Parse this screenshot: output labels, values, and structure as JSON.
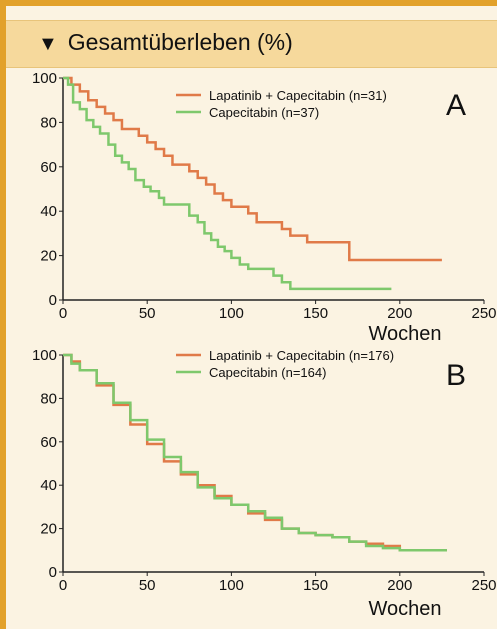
{
  "header": {
    "title": "Gesamtüberleben (%)",
    "icon": "collapse-triangle-icon"
  },
  "colors": {
    "orange": "#e07a48",
    "green": "#7ec86c",
    "header_bg": "#f6d99c",
    "panel_bg": "#fbf3e2",
    "border": "#e2a12a"
  },
  "chart_data": [
    {
      "type": "line",
      "panel_label": "A",
      "xlabel": "Wochen",
      "ylabel": "",
      "xlim": [
        0,
        250
      ],
      "ylim": [
        0,
        100
      ],
      "xticks": [
        "0",
        "50",
        "100",
        "150",
        "200",
        "250"
      ],
      "yticks": [
        "0",
        "20",
        "40",
        "60",
        "80",
        "100"
      ],
      "legend_position": "top-right",
      "series": [
        {
          "name": "Lapatinib + Capecitabin (n=31)",
          "color": "#e07a48",
          "x": [
            0,
            5,
            10,
            15,
            20,
            25,
            30,
            35,
            45,
            50,
            55,
            60,
            65,
            75,
            80,
            85,
            90,
            95,
            100,
            105,
            110,
            115,
            130,
            135,
            140,
            145,
            155,
            160,
            170,
            175,
            180,
            225
          ],
          "y": [
            100,
            97,
            94,
            90,
            87,
            84,
            81,
            77,
            74,
            71,
            68,
            65,
            61,
            58,
            55,
            52,
            48,
            45,
            42,
            42,
            39,
            35,
            32,
            29,
            29,
            26,
            26,
            26,
            18,
            18,
            18,
            18
          ]
        },
        {
          "name": "Capecitabin (n=37)",
          "color": "#7ec86c",
          "x": [
            0,
            3,
            6,
            10,
            14,
            18,
            22,
            27,
            31,
            35,
            39,
            43,
            48,
            52,
            57,
            60,
            63,
            75,
            80,
            84,
            88,
            92,
            96,
            100,
            105,
            110,
            120,
            125,
            130,
            135,
            145,
            150,
            195
          ],
          "y": [
            100,
            97,
            89,
            86,
            81,
            78,
            75,
            70,
            65,
            62,
            59,
            54,
            51,
            49,
            46,
            43,
            43,
            38,
            35,
            30,
            27,
            24,
            22,
            19,
            16,
            14,
            14,
            11,
            8,
            5,
            5,
            5,
            5
          ]
        }
      ]
    },
    {
      "type": "line",
      "panel_label": "B",
      "xlabel": "Wochen",
      "ylabel": "",
      "xlim": [
        0,
        250
      ],
      "ylim": [
        0,
        100
      ],
      "xticks": [
        "0",
        "50",
        "100",
        "150",
        "200",
        "250"
      ],
      "yticks": [
        "0",
        "20",
        "40",
        "60",
        "80",
        "100"
      ],
      "legend_position": "top-right",
      "series": [
        {
          "name": "Lapatinib + Capecitabin (n=176)",
          "color": "#e07a48",
          "x": [
            0,
            5,
            10,
            20,
            30,
            40,
            50,
            60,
            70,
            80,
            90,
            100,
            110,
            120,
            130,
            140,
            150,
            160,
            170,
            180,
            190,
            200,
            210,
            228
          ],
          "y": [
            100,
            97,
            93,
            86,
            77,
            68,
            59,
            51,
            45,
            40,
            35,
            31,
            27,
            24,
            20,
            18,
            17,
            16,
            14,
            13,
            12,
            10,
            10,
            10
          ]
        },
        {
          "name": "Capecitabin (n=164)",
          "color": "#7ec86c",
          "x": [
            0,
            5,
            10,
            20,
            30,
            40,
            50,
            60,
            70,
            80,
            90,
            100,
            110,
            120,
            130,
            140,
            150,
            160,
            170,
            180,
            190,
            200,
            210,
            228
          ],
          "y": [
            100,
            96,
            93,
            87,
            78,
            70,
            61,
            53,
            46,
            39,
            34,
            31,
            28,
            25,
            20,
            18,
            17,
            16,
            14,
            12,
            11,
            10,
            10,
            10
          ]
        }
      ]
    }
  ]
}
